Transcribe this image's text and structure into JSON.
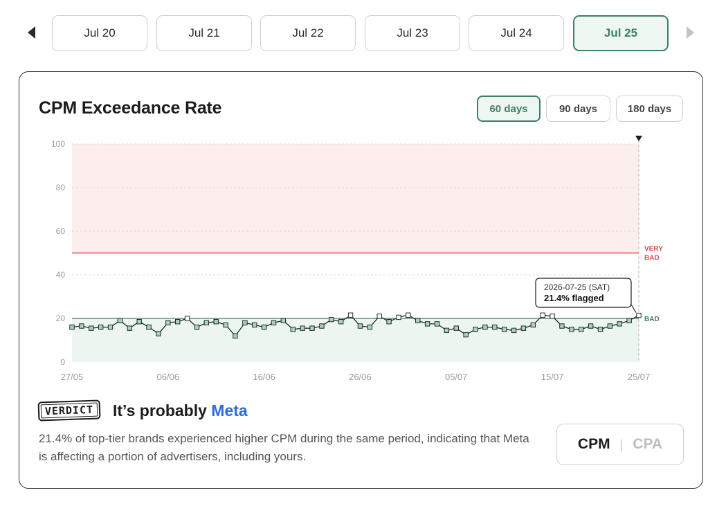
{
  "dates": {
    "items": [
      "Jul 20",
      "Jul 21",
      "Jul 22",
      "Jul 23",
      "Jul 24",
      "Jul 25"
    ],
    "active_index": 5,
    "prev_icon": "triangle-left-icon",
    "next_icon": "triangle-right-icon"
  },
  "card": {
    "title": "CPM Exceedance Rate",
    "ranges": [
      "60 days",
      "90 days",
      "180 days"
    ],
    "active_range": 0
  },
  "colors": {
    "accent": "#3f7d67",
    "very_bad_line": "#e0484d",
    "very_bad_zone": "#fdeeee",
    "good_zone": "#ecf5f0",
    "brand": "#2f6bd8"
  },
  "chart_data": {
    "type": "line",
    "ylim": [
      0,
      100
    ],
    "yticks": [
      0,
      20,
      40,
      60,
      80,
      100
    ],
    "x_tick_labels": [
      "27/05",
      "06/06",
      "16/06",
      "26/06",
      "05/07",
      "15/07",
      "25/07"
    ],
    "x_tick_indices": [
      0,
      10,
      20,
      30,
      40,
      50,
      59
    ],
    "thresholds": [
      {
        "label": [
          "VERY",
          "BAD"
        ],
        "value": 50
      },
      {
        "label": [
          "BAD"
        ],
        "value": 20
      }
    ],
    "values": [
      16,
      16.5,
      15.5,
      16,
      16,
      19,
      15.5,
      18.5,
      16,
      13,
      18,
      18.5,
      20,
      16,
      18,
      18.5,
      17,
      12,
      18,
      17,
      16,
      18,
      19,
      15,
      15.5,
      15.5,
      16.5,
      19.5,
      18.5,
      21.5,
      16.5,
      16,
      21,
      18.5,
      20.5,
      21.5,
      19,
      17.5,
      17.5,
      14.5,
      15.5,
      12.5,
      15,
      16,
      16,
      15,
      14.5,
      15.5,
      17,
      21.5,
      21,
      16.5,
      15,
      15,
      16.5,
      15,
      16.5,
      17.5,
      19,
      21.4
    ],
    "tooltip": {
      "date": "2026-07-25 (SAT)",
      "value_text": "21.4% flagged"
    }
  },
  "verdict": {
    "stamp": "VERDICT",
    "prefix": "It’s probably ",
    "brand": "Meta",
    "description": "21.4% of top-tier brands experienced higher CPM during the same period, indicating that Meta is affecting a portion of advertisers, including yours."
  },
  "metric_toggle": {
    "active": "CPM",
    "separator": "|",
    "inactive": "CPA"
  }
}
